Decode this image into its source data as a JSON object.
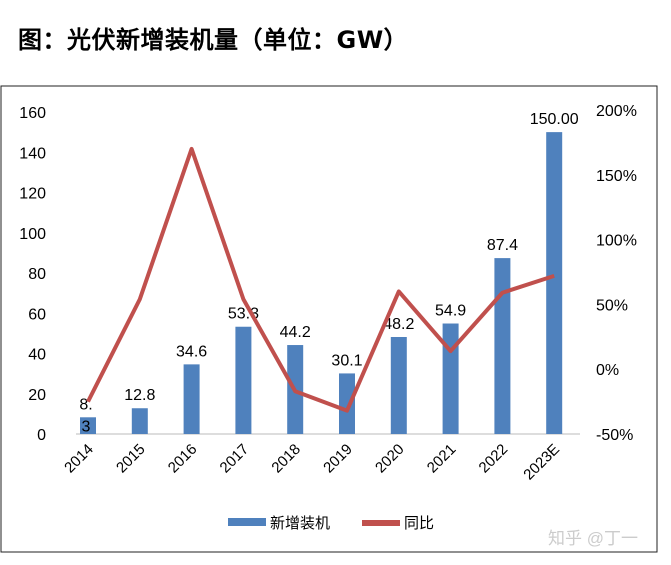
{
  "chart_data": {
    "type": "bar+line",
    "title": "图：光伏新增装机量（单位：GW）",
    "categories": [
      "2014",
      "2015",
      "2016",
      "2017",
      "2018",
      "2019",
      "2020",
      "2021",
      "2022",
      "2023E"
    ],
    "series": [
      {
        "name": "新增装机",
        "type": "bar",
        "axis": "left",
        "color": "#4F81BD",
        "values": [
          8.3,
          12.8,
          34.6,
          53.3,
          44.2,
          30.1,
          48.2,
          54.9,
          87.4,
          150.0
        ],
        "labels": [
          "8.\n3",
          "12.8",
          "34.6",
          "53.3",
          "44.2",
          "30.1",
          "48.2",
          "54.9",
          "87.4",
          "150.00"
        ]
      },
      {
        "name": "同比",
        "type": "line",
        "axis": "right",
        "color": "#C0504D",
        "values": [
          -25,
          54,
          170,
          54,
          -17,
          -32,
          60,
          14,
          59,
          72
        ]
      }
    ],
    "left_axis": {
      "min": 0,
      "max": 160,
      "ticks": [
        "0",
        "20",
        "40",
        "60",
        "80",
        "100",
        "120",
        "140",
        "160"
      ]
    },
    "right_axis": {
      "min": -50,
      "max": 200,
      "ticks": [
        "-50%",
        "0%",
        "50%",
        "100%",
        "150%",
        "200%"
      ]
    },
    "legend": "bottom",
    "grid": false
  },
  "watermark": "知乎 @丁一"
}
